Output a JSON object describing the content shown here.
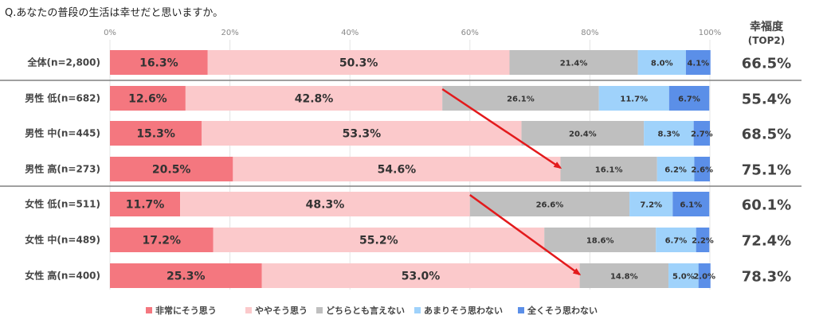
{
  "question": "Q.あなたの普段の生活は幸せだと思いますか。",
  "top2_header": "幸福度",
  "top2_subheader": "(TOP2)",
  "chart_data": {
    "type": "bar",
    "orientation": "horizontal",
    "stacked": true,
    "percent_stacked": true,
    "title": "Q.あなたの普段の生活は幸せだと思いますか。",
    "xlim": [
      0,
      100
    ],
    "x_ticks": [
      "0%",
      "20%",
      "40%",
      "60%",
      "80%",
      "100%"
    ],
    "legend_position": "bottom",
    "categories": [
      "全体(n=2,800)",
      "男性 低(n=682)",
      "男性 中(n=445)",
      "男性 高(n=273)",
      "女性 低(n=511)",
      "女性 中(n=489)",
      "女性 高(n=400)"
    ],
    "series": [
      {
        "name": "非常にそう思う",
        "color": "#f4777f",
        "values": [
          16.3,
          12.6,
          15.3,
          20.5,
          11.7,
          17.2,
          25.3
        ]
      },
      {
        "name": "ややそう思う",
        "color": "#fbc9cb",
        "values": [
          50.3,
          42.8,
          53.3,
          54.6,
          48.3,
          55.2,
          53.0
        ]
      },
      {
        "name": "どちらとも言えない",
        "color": "#bfbfbf",
        "values": [
          21.4,
          26.1,
          20.4,
          16.1,
          26.6,
          18.6,
          14.8
        ]
      },
      {
        "name": "あまりそう思わない",
        "color": "#9fd2fb",
        "values": [
          8.0,
          11.7,
          8.3,
          6.2,
          7.2,
          6.7,
          5.0
        ]
      },
      {
        "name": "全くそう思わない",
        "color": "#5b8fe8",
        "values": [
          4.1,
          6.7,
          2.7,
          2.6,
          6.1,
          2.2,
          2.0
        ]
      }
    ],
    "top2": [
      "66.5%",
      "55.4%",
      "68.5%",
      "75.1%",
      "60.1%",
      "72.4%",
      "78.3%"
    ],
    "arrow_color": "#e31a1c"
  }
}
